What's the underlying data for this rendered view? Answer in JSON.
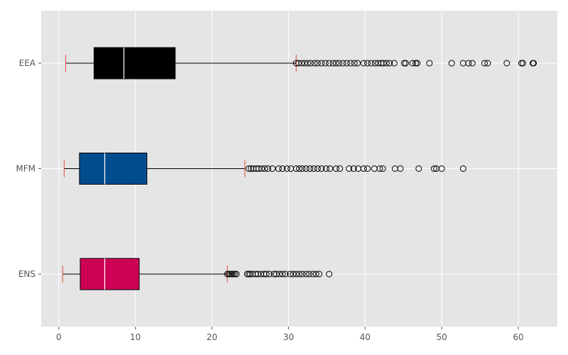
{
  "chart_data": {
    "type": "boxplot",
    "orientation": "horizontal",
    "title": "",
    "xlabel": "",
    "ylabel": "",
    "xlim": [
      -2.3,
      65.1
    ],
    "xticks": [
      0,
      10,
      20,
      30,
      40,
      50,
      60
    ],
    "grid": true,
    "style": "ggplot",
    "categories": [
      "ENS",
      "MFM",
      "EEA"
    ],
    "series": [
      {
        "name": "ENS",
        "color": "#cc0055",
        "whisker_low": 0.5,
        "q1": 2.8,
        "median": 6.0,
        "q3": 10.5,
        "whisker_high": 22.0,
        "outliers": [
          22.0,
          22.2,
          22.4,
          22.6,
          22.8,
          23.0,
          23.2,
          24.6,
          24.8,
          25.0,
          25.3,
          25.7,
          26.0,
          26.4,
          26.8,
          27.1,
          27.5,
          28.1,
          28.4,
          28.8,
          29.2,
          29.6,
          30.2,
          30.6,
          31.0,
          31.4,
          31.8,
          32.3,
          32.7,
          33.2,
          33.6,
          34.0,
          35.3
        ]
      },
      {
        "name": "MFM",
        "color": "#004c8c",
        "whisker_low": 0.7,
        "q1": 2.7,
        "median": 6.0,
        "q3": 11.5,
        "whisker_high": 24.3,
        "outliers": [
          24.8,
          25.1,
          25.4,
          25.8,
          26.1,
          26.5,
          26.9,
          27.3,
          27.9,
          28.7,
          29.2,
          29.8,
          30.3,
          31.0,
          31.4,
          31.8,
          32.3,
          32.8,
          33.3,
          33.8,
          34.3,
          34.9,
          35.4,
          36.2,
          36.7,
          37.9,
          38.5,
          39.1,
          39.8,
          40.3,
          41.2,
          41.9,
          42.3,
          43.9,
          44.6,
          47.0,
          49.0,
          49.3,
          50.0,
          52.8
        ]
      },
      {
        "name": "EEA",
        "color": "#000000",
        "whisker_low": 0.9,
        "q1": 4.6,
        "median": 8.5,
        "q3": 15.2,
        "whisker_high": 31.0,
        "outliers": [
          31.0,
          31.3,
          31.7,
          32.1,
          32.5,
          32.9,
          33.4,
          33.8,
          34.3,
          34.8,
          35.3,
          35.8,
          36.2,
          36.6,
          37.1,
          37.6,
          38.1,
          38.6,
          39.0,
          39.8,
          40.3,
          40.8,
          41.3,
          41.7,
          42.1,
          42.4,
          42.8,
          43.2,
          43.8,
          45.1,
          45.3,
          46.2,
          46.6,
          46.8,
          48.4,
          51.3,
          52.8,
          53.5,
          54.0,
          55.6,
          56.0,
          58.5,
          60.4,
          60.6,
          61.9,
          62.0
        ]
      }
    ]
  }
}
